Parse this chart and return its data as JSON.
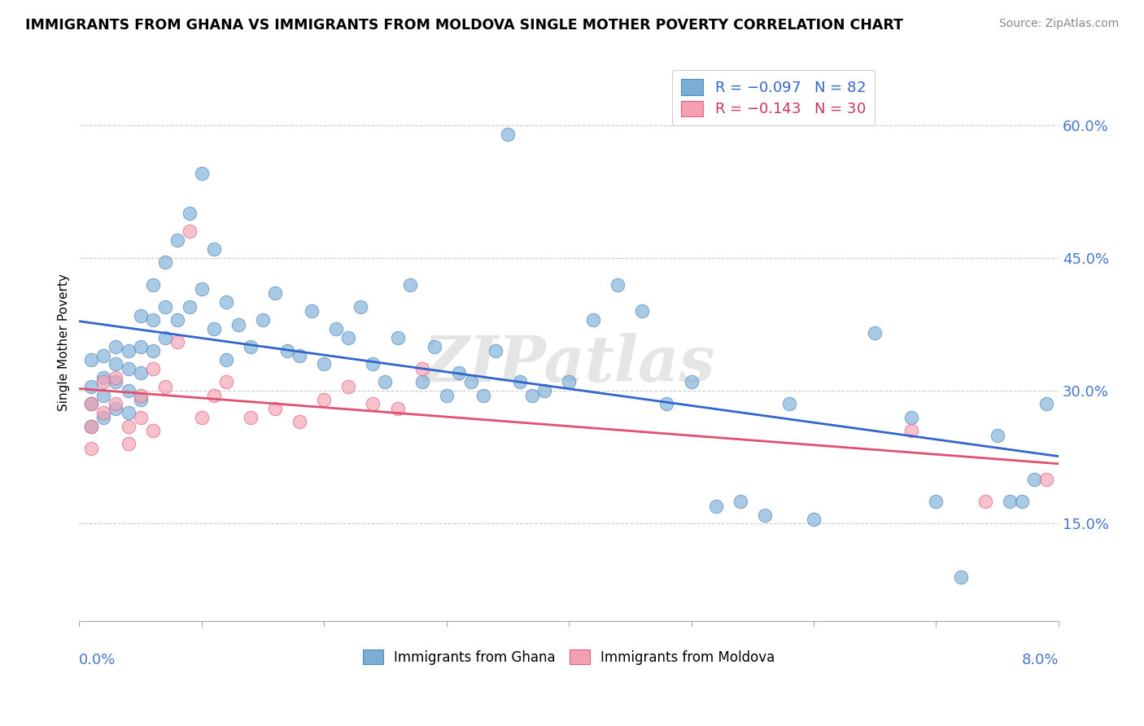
{
  "title": "IMMIGRANTS FROM GHANA VS IMMIGRANTS FROM MOLDOVA SINGLE MOTHER POVERTY CORRELATION CHART",
  "source": "Source: ZipAtlas.com",
  "ylabel": "Single Mother Poverty",
  "xlim": [
    0.0,
    0.08
  ],
  "ylim": [
    0.04,
    0.67
  ],
  "ghana_color": "#7aaed6",
  "moldova_color": "#f4a0b0",
  "ghana_edge_color": "#5588bb",
  "moldova_edge_color": "#e06080",
  "ghana_line_color": "#3366CC",
  "moldova_line_color": "#e05070",
  "watermark": "ZIPatlas",
  "ghana_R": -0.097,
  "ghana_N": 82,
  "moldova_R": -0.143,
  "moldova_N": 30,
  "ghana_x": [
    0.001,
    0.001,
    0.001,
    0.001,
    0.002,
    0.002,
    0.002,
    0.002,
    0.003,
    0.003,
    0.003,
    0.003,
    0.004,
    0.004,
    0.004,
    0.004,
    0.005,
    0.005,
    0.005,
    0.005,
    0.006,
    0.006,
    0.006,
    0.007,
    0.007,
    0.007,
    0.008,
    0.008,
    0.009,
    0.009,
    0.01,
    0.01,
    0.011,
    0.011,
    0.012,
    0.012,
    0.013,
    0.014,
    0.015,
    0.016,
    0.017,
    0.018,
    0.019,
    0.02,
    0.021,
    0.022,
    0.023,
    0.024,
    0.025,
    0.026,
    0.027,
    0.028,
    0.029,
    0.03,
    0.031,
    0.032,
    0.033,
    0.034,
    0.035,
    0.036,
    0.037,
    0.038,
    0.04,
    0.042,
    0.044,
    0.046,
    0.048,
    0.05,
    0.052,
    0.054,
    0.056,
    0.058,
    0.06,
    0.065,
    0.068,
    0.07,
    0.072,
    0.075,
    0.076,
    0.077,
    0.078,
    0.079
  ],
  "ghana_y": [
    0.335,
    0.305,
    0.285,
    0.26,
    0.34,
    0.315,
    0.295,
    0.27,
    0.35,
    0.33,
    0.31,
    0.28,
    0.345,
    0.325,
    0.3,
    0.275,
    0.385,
    0.35,
    0.32,
    0.29,
    0.42,
    0.38,
    0.345,
    0.445,
    0.395,
    0.36,
    0.47,
    0.38,
    0.5,
    0.395,
    0.545,
    0.415,
    0.46,
    0.37,
    0.4,
    0.335,
    0.375,
    0.35,
    0.38,
    0.41,
    0.345,
    0.34,
    0.39,
    0.33,
    0.37,
    0.36,
    0.395,
    0.33,
    0.31,
    0.36,
    0.42,
    0.31,
    0.35,
    0.295,
    0.32,
    0.31,
    0.295,
    0.345,
    0.59,
    0.31,
    0.295,
    0.3,
    0.31,
    0.38,
    0.42,
    0.39,
    0.285,
    0.31,
    0.17,
    0.175,
    0.16,
    0.285,
    0.155,
    0.365,
    0.27,
    0.175,
    0.09,
    0.25,
    0.175,
    0.175,
    0.2,
    0.285
  ],
  "moldova_x": [
    0.001,
    0.001,
    0.001,
    0.002,
    0.002,
    0.003,
    0.003,
    0.004,
    0.004,
    0.005,
    0.005,
    0.006,
    0.006,
    0.007,
    0.008,
    0.009,
    0.01,
    0.011,
    0.012,
    0.014,
    0.016,
    0.018,
    0.02,
    0.022,
    0.024,
    0.026,
    0.028,
    0.068,
    0.074,
    0.079
  ],
  "moldova_y": [
    0.285,
    0.26,
    0.235,
    0.31,
    0.275,
    0.315,
    0.285,
    0.26,
    0.24,
    0.295,
    0.27,
    0.325,
    0.255,
    0.305,
    0.355,
    0.48,
    0.27,
    0.295,
    0.31,
    0.27,
    0.28,
    0.265,
    0.29,
    0.305,
    0.285,
    0.28,
    0.325,
    0.255,
    0.175,
    0.2
  ]
}
